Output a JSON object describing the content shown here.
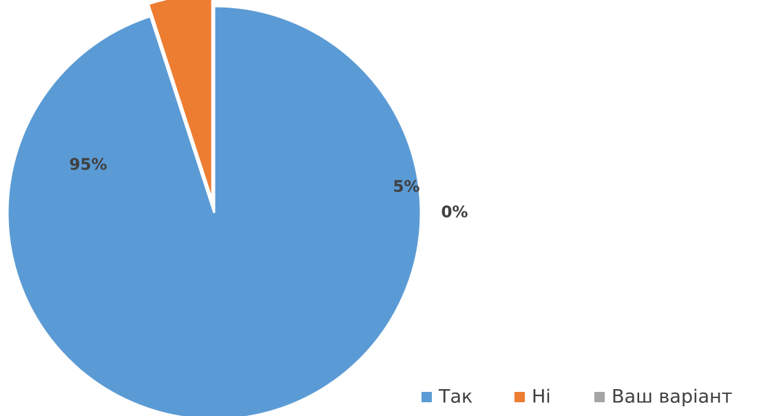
{
  "chart_data": {
    "type": "pie",
    "categories": [
      "Так",
      "Ні",
      "Ваш варіант"
    ],
    "values": [
      95,
      5,
      0
    ],
    "data_labels": [
      "95%",
      "5%",
      "0%"
    ],
    "colors": [
      "#5b9bd5",
      "#ed7d31",
      "#a5a5a5"
    ],
    "exploded": true,
    "start_angle_deg": 90,
    "legend_position": "bottom-right"
  }
}
